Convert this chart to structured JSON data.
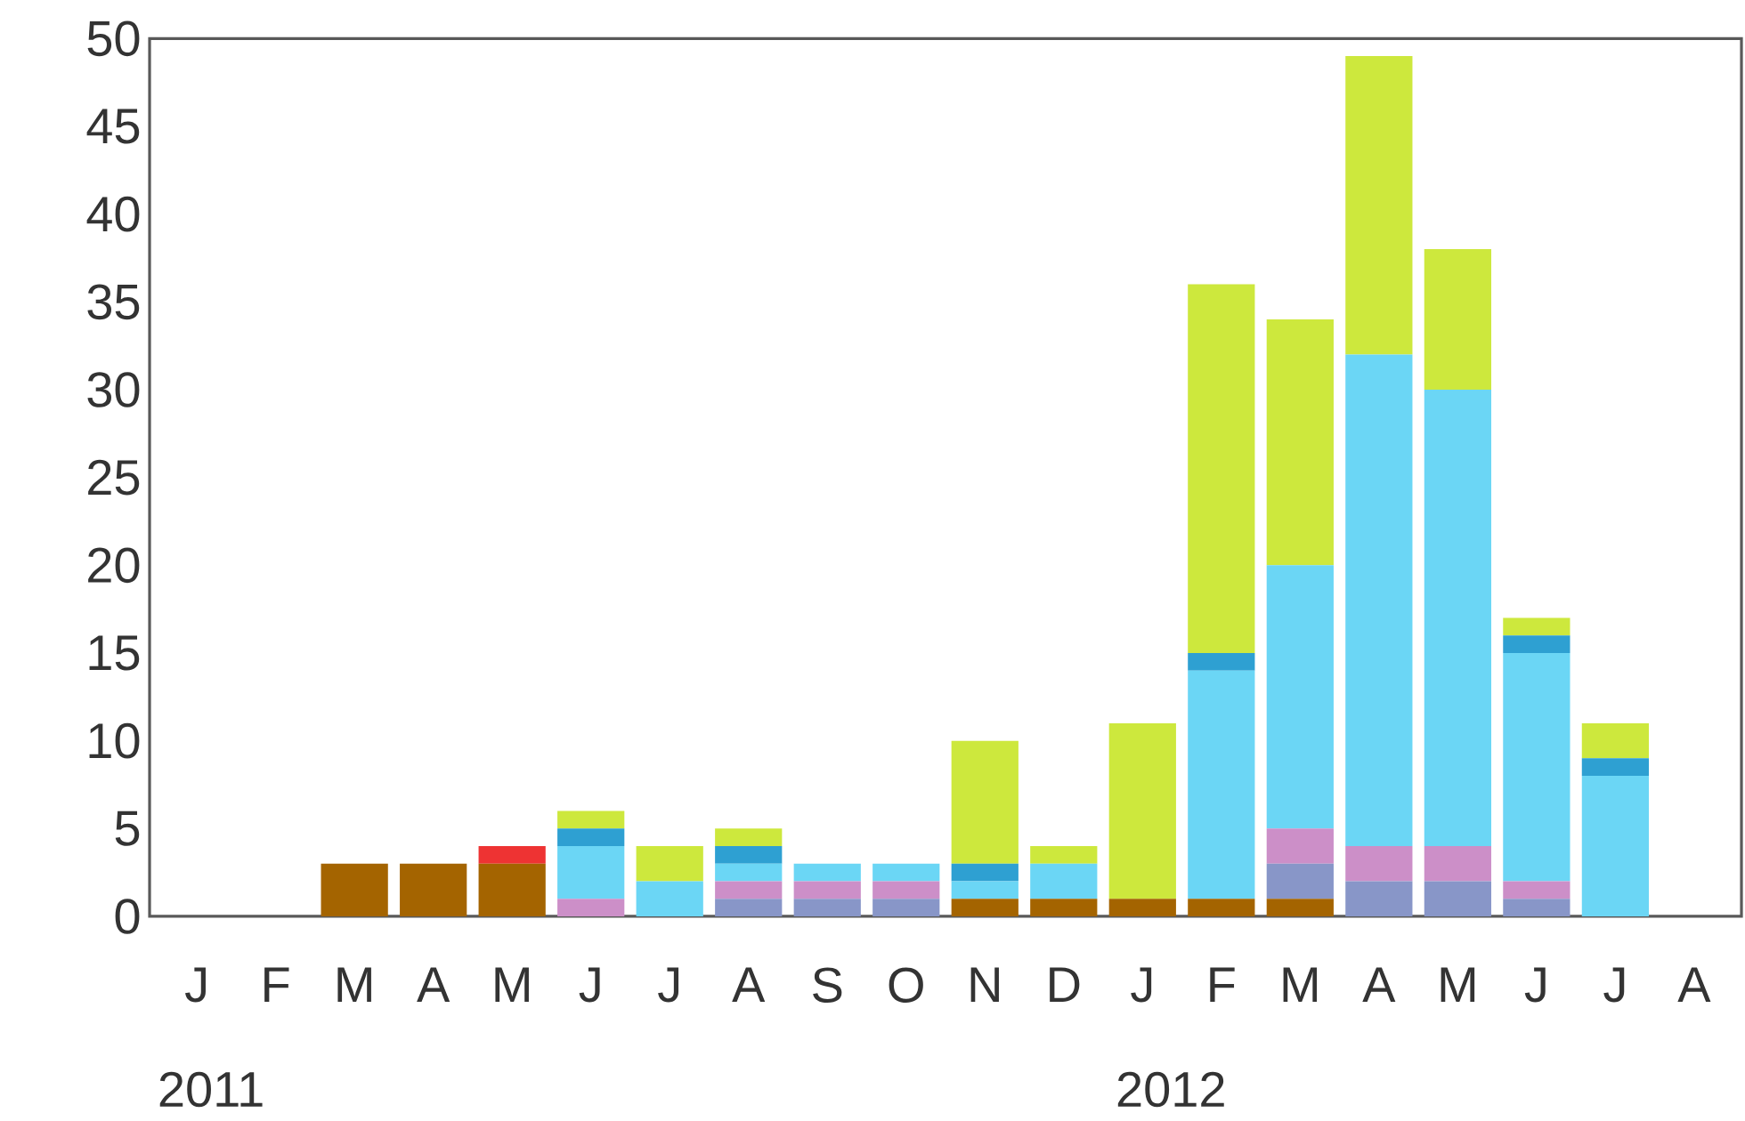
{
  "chart_data": {
    "type": "bar",
    "stacked": true,
    "categories": [
      "J",
      "F",
      "M",
      "A",
      "M",
      "J",
      "J",
      "A",
      "S",
      "O",
      "N",
      "D",
      "J",
      "F",
      "M",
      "A",
      "M",
      "J",
      "J",
      "A"
    ],
    "series": [
      {
        "color": "#a46400",
        "values": [
          0,
          0,
          3,
          3,
          3,
          0,
          0,
          0,
          0,
          0,
          1,
          1,
          1,
          1,
          1,
          0,
          0,
          0,
          0,
          0
        ]
      },
      {
        "color": "#8896c8",
        "values": [
          0,
          0,
          0,
          0,
          0,
          0,
          0,
          1,
          1,
          1,
          0,
          0,
          0,
          0,
          2,
          2,
          2,
          1,
          0,
          0
        ]
      },
      {
        "color": "#cc8fc8",
        "values": [
          0,
          0,
          0,
          0,
          0,
          1,
          0,
          1,
          1,
          1,
          0,
          0,
          0,
          0,
          2,
          2,
          2,
          1,
          0,
          0
        ]
      },
      {
        "color": "#6bd6f5",
        "values": [
          0,
          0,
          0,
          0,
          0,
          3,
          2,
          1,
          1,
          1,
          1,
          2,
          0,
          13,
          15,
          28,
          26,
          13,
          8,
          0
        ]
      },
      {
        "color": "#2ea0d2",
        "values": [
          0,
          0,
          0,
          0,
          0,
          1,
          0,
          1,
          0,
          0,
          1,
          0,
          0,
          1,
          0,
          0,
          0,
          1,
          1,
          0
        ]
      },
      {
        "color": "#ee3333",
        "values": [
          0,
          0,
          0,
          0,
          1,
          0,
          0,
          0,
          0,
          0,
          0,
          0,
          0,
          0,
          0,
          0,
          0,
          0,
          0,
          0
        ]
      },
      {
        "color": "#cde83d",
        "values": [
          0,
          0,
          0,
          0,
          0,
          1,
          2,
          1,
          0,
          0,
          7,
          1,
          10,
          21,
          14,
          17,
          8,
          1,
          2,
          0
        ]
      }
    ],
    "ylim": [
      0,
      50
    ],
    "yticks": [
      0,
      5,
      10,
      15,
      20,
      25,
      30,
      35,
      40,
      45,
      50
    ],
    "annotations": [
      "2011",
      "2012"
    ]
  }
}
